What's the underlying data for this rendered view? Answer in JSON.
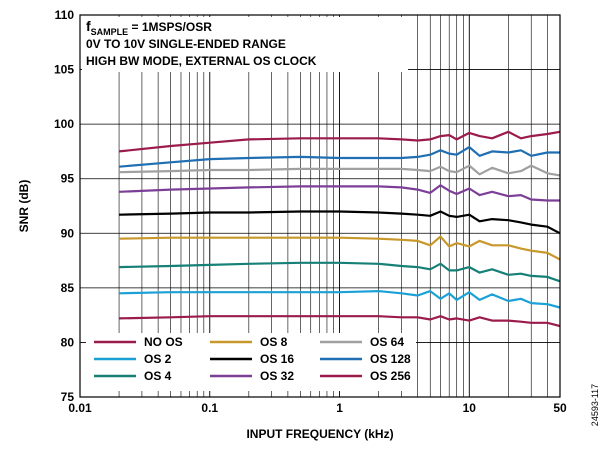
{
  "chart_data": {
    "type": "line",
    "xlabel": "INPUT FREQUENCY (kHz)",
    "ylabel": "SNR (dB)",
    "x_scale": "log",
    "xlim": [
      0.01,
      50
    ],
    "ylim": [
      75,
      110
    ],
    "x_ticks": [
      "0.01",
      "0.1",
      "1",
      "10",
      "50"
    ],
    "x_tick_values": [
      0.01,
      0.1,
      1,
      10,
      50
    ],
    "y_ticks": [
      "75",
      "80",
      "85",
      "90",
      "95",
      "100",
      "105",
      "110"
    ],
    "y_tick_values": [
      75,
      80,
      85,
      90,
      95,
      100,
      105,
      110
    ],
    "grid": true,
    "legend_position": "bottom-left",
    "annotation": {
      "f_prefix": "f",
      "f_subscript": "SAMPLE",
      "f_suffix": " = 1MSPS/OSR",
      "line2": "0V TO 10V SINGLE-ENDED RANGE",
      "line3": "HIGH BW MODE, EXTERNAL OS CLOCK"
    },
    "figure_id": "24593-117",
    "x": [
      0.02,
      0.05,
      0.1,
      0.2,
      0.5,
      1,
      2,
      3,
      4,
      5,
      6,
      7,
      8,
      10,
      12,
      15,
      20,
      25,
      30,
      40,
      50
    ],
    "series": [
      {
        "name": "NO OS",
        "color": "#9b1b4c",
        "values": [
          82.2,
          82.3,
          82.4,
          82.4,
          82.4,
          82.4,
          82.4,
          82.3,
          82.3,
          82.1,
          82.4,
          82.1,
          82.2,
          82.0,
          82.3,
          82.0,
          82.0,
          81.9,
          81.8,
          81.8,
          81.5
        ]
      },
      {
        "name": "OS 2",
        "color": "#1ba1d6",
        "values": [
          84.5,
          84.6,
          84.6,
          84.6,
          84.6,
          84.6,
          84.7,
          84.5,
          84.3,
          84.7,
          84.0,
          84.5,
          83.9,
          84.6,
          83.9,
          84.4,
          83.8,
          84.0,
          83.6,
          83.5,
          83.2
        ]
      },
      {
        "name": "OS 4",
        "color": "#168077",
        "values": [
          86.9,
          87.0,
          87.1,
          87.2,
          87.3,
          87.3,
          87.2,
          87.0,
          86.9,
          86.7,
          87.2,
          86.6,
          86.6,
          86.9,
          86.4,
          86.7,
          86.2,
          86.3,
          86.1,
          86.0,
          85.6
        ]
      },
      {
        "name": "OS 8",
        "color": "#c8982a",
        "values": [
          89.5,
          89.6,
          89.6,
          89.6,
          89.6,
          89.6,
          89.5,
          89.4,
          89.3,
          88.9,
          89.7,
          88.8,
          89.1,
          88.8,
          89.3,
          88.9,
          88.9,
          88.6,
          88.4,
          88.2,
          87.6
        ]
      },
      {
        "name": "OS 16",
        "color": "#000000",
        "values": [
          91.7,
          91.8,
          91.9,
          91.9,
          92.0,
          92.0,
          91.9,
          91.8,
          91.7,
          91.6,
          92.0,
          91.6,
          91.5,
          91.7,
          91.1,
          91.3,
          91.2,
          91.0,
          90.8,
          90.6,
          90.0
        ]
      },
      {
        "name": "OS 32",
        "color": "#7c3f98",
        "values": [
          93.8,
          94.0,
          94.1,
          94.2,
          94.3,
          94.3,
          94.3,
          94.2,
          94.0,
          93.7,
          94.4,
          93.9,
          93.6,
          94.1,
          93.5,
          93.8,
          93.4,
          93.5,
          93.1,
          93.0,
          93.0
        ]
      },
      {
        "name": "OS 64",
        "color": "#a0a0a0",
        "values": [
          95.6,
          95.7,
          95.8,
          95.8,
          95.9,
          95.9,
          95.9,
          95.9,
          95.8,
          95.7,
          96.1,
          95.7,
          95.6,
          96.2,
          95.4,
          96.0,
          95.5,
          95.7,
          96.2,
          95.5,
          95.3
        ]
      },
      {
        "name": "OS 128",
        "color": "#1f6fb2",
        "values": [
          96.1,
          96.5,
          96.8,
          96.9,
          97.0,
          96.9,
          96.9,
          96.9,
          97.0,
          97.2,
          97.6,
          97.3,
          97.2,
          97.9,
          97.1,
          97.5,
          97.4,
          97.6,
          97.1,
          97.4,
          97.4
        ]
      },
      {
        "name": "OS 256",
        "color": "#9b1b4c",
        "values": [
          97.5,
          98.0,
          98.3,
          98.6,
          98.7,
          98.7,
          98.7,
          98.6,
          98.5,
          98.6,
          98.9,
          99.0,
          98.6,
          99.2,
          98.9,
          98.7,
          99.3,
          98.7,
          98.9,
          99.1,
          99.3
        ]
      }
    ]
  }
}
